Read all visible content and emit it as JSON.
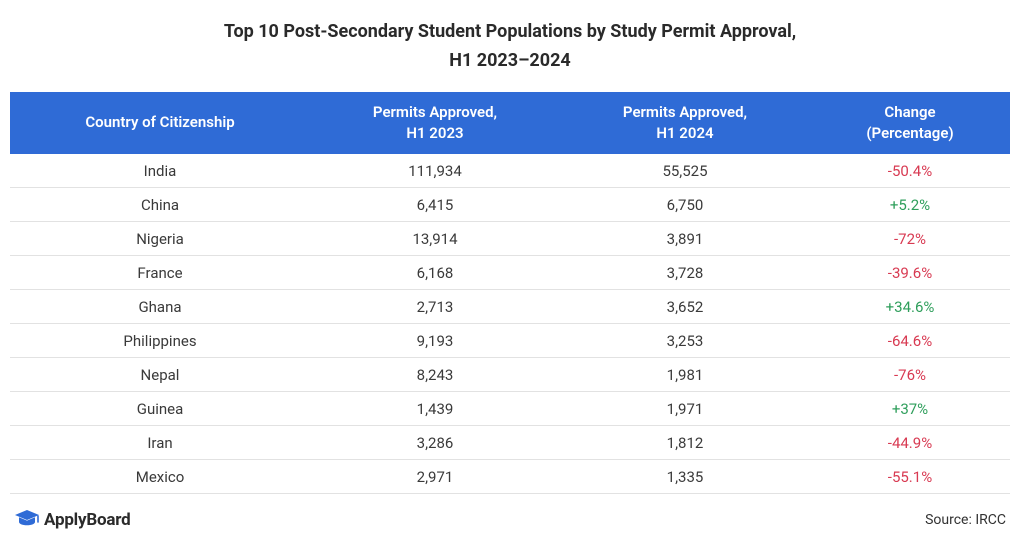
{
  "title_line1": "Top 10 Post-Secondary Student Populations by Study Permit Approval,",
  "title_line2": "H1 2023–2024",
  "table": {
    "type": "table",
    "header_bg_color": "#2f6bd6",
    "header_text_color": "#ffffff",
    "border_color": "#e2e2e2",
    "negative_color": "#d83a52",
    "positive_color": "#2e9e5b",
    "col_widths_pct": [
      30,
      25,
      25,
      20
    ],
    "columns": [
      "Country of Citizenship",
      "Permits Approved,\nH1 2023",
      "Permits Approved,\nH1 2024",
      "Change (Percentage)"
    ],
    "rows": [
      {
        "country": "India",
        "h1_2023": "111,934",
        "h1_2024": "55,525",
        "change": "-50.4%",
        "sign": "neg"
      },
      {
        "country": "China",
        "h1_2023": "6,415",
        "h1_2024": "6,750",
        "change": "+5.2%",
        "sign": "pos"
      },
      {
        "country": "Nigeria",
        "h1_2023": "13,914",
        "h1_2024": "3,891",
        "change": "-72%",
        "sign": "neg"
      },
      {
        "country": "France",
        "h1_2023": "6,168",
        "h1_2024": "3,728",
        "change": "-39.6%",
        "sign": "neg"
      },
      {
        "country": "Ghana",
        "h1_2023": "2,713",
        "h1_2024": "3,652",
        "change": "+34.6%",
        "sign": "pos"
      },
      {
        "country": "Philippines",
        "h1_2023": "9,193",
        "h1_2024": "3,253",
        "change": "-64.6%",
        "sign": "neg"
      },
      {
        "country": "Nepal",
        "h1_2023": "8,243",
        "h1_2024": "1,981",
        "change": "-76%",
        "sign": "neg"
      },
      {
        "country": "Guinea",
        "h1_2023": "1,439",
        "h1_2024": "1,971",
        "change": "+37%",
        "sign": "pos"
      },
      {
        "country": "Iran",
        "h1_2023": "3,286",
        "h1_2024": "1,812",
        "change": "-44.9%",
        "sign": "neg"
      },
      {
        "country": "Mexico",
        "h1_2023": "2,971",
        "h1_2024": "1,335",
        "change": "-55.1%",
        "sign": "neg"
      }
    ]
  },
  "footer": {
    "logo_text": "ApplyBoard",
    "logo_color": "#2f6bd6",
    "source_text": "Source: IRCC"
  },
  "typography": {
    "title_fontsize": 18,
    "title_fontweight": 700,
    "header_fontsize": 15,
    "cell_fontsize": 15,
    "footer_fontsize": 14
  },
  "background_color": "#ffffff"
}
